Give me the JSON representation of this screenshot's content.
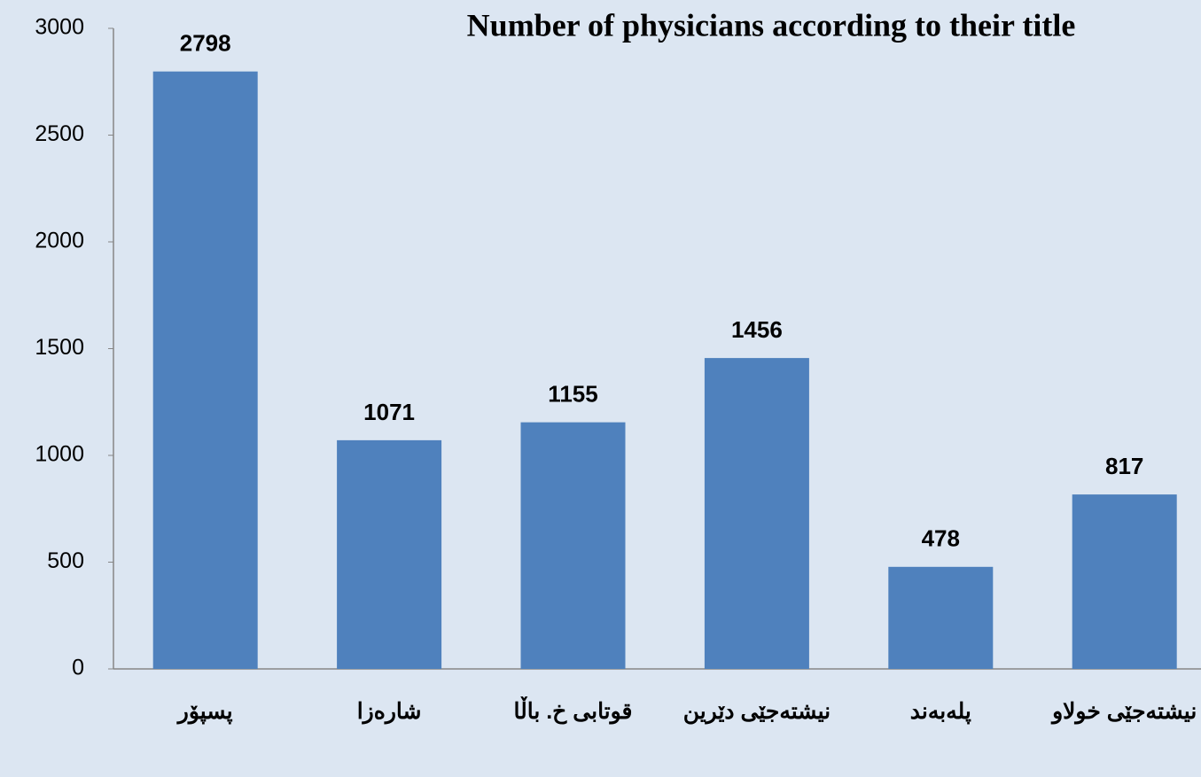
{
  "chart_data": {
    "type": "bar",
    "title": "Number of physicians according to their title",
    "categories": [
      "پسپۆر",
      "شارەزا",
      "قوتابی خ. باڵا",
      "نیشتەجێی دێرین",
      "پلەبەند",
      "نیشتەجێی خولاو"
    ],
    "values": [
      2798,
      1071,
      1155,
      1456,
      478,
      817
    ],
    "color": "#4f81bd",
    "ylim": [
      0,
      3000
    ],
    "yticks": [
      0,
      500,
      1000,
      1500,
      2000,
      2500,
      3000
    ],
    "grid": false
  }
}
